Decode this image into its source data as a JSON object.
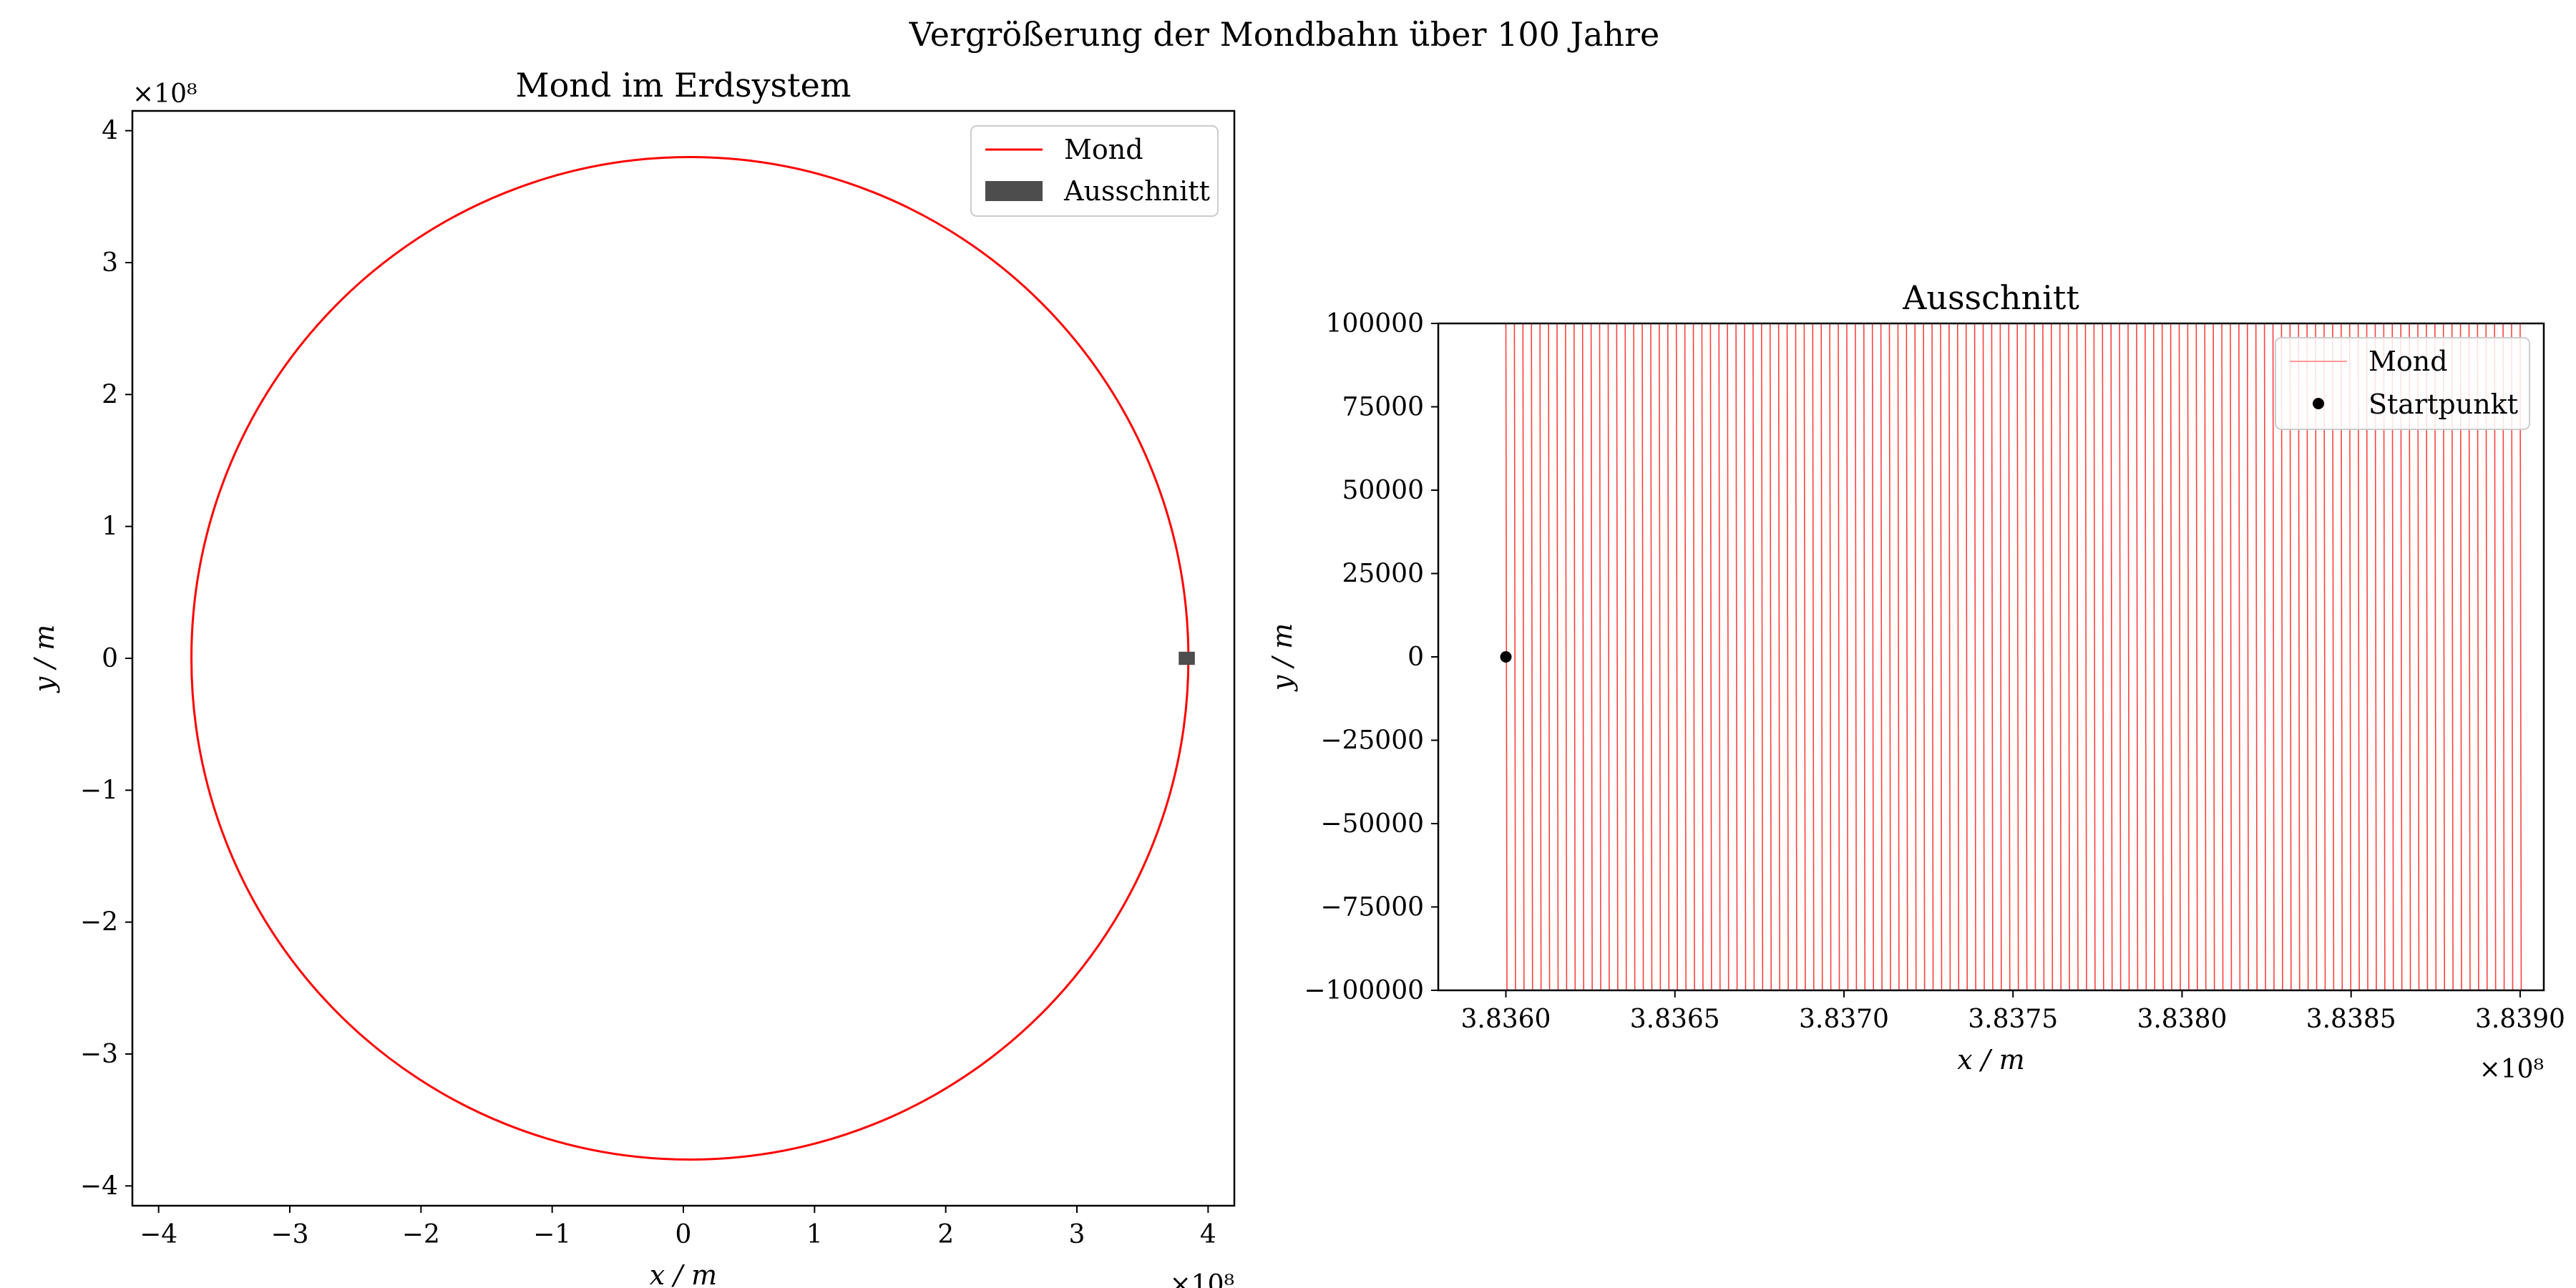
{
  "figure": {
    "suptitle": "Vergrößerung der Mondbahn über 100 Jahre"
  },
  "colors": {
    "orbit": "#ff0000",
    "orbit_faint": "#ff9a9a",
    "region": "#4d4d4d",
    "start": "#000000",
    "axes": "#000000"
  },
  "chart_data": [
    {
      "type": "line",
      "title": "Mond im Erdsystem",
      "xlabel": "x / m",
      "ylabel": "y / m",
      "xlim": [
        -420000000.0,
        420000000.0
      ],
      "ylim": [
        -415000000.0,
        415000000.0
      ],
      "x_ticks": [
        -400000000.0,
        -300000000.0,
        -200000000.0,
        -100000000.0,
        0,
        100000000.0,
        200000000.0,
        300000000.0,
        400000000.0
      ],
      "x_tick_labels": [
        "−4",
        "−3",
        "−2",
        "−1",
        "0",
        "1",
        "2",
        "3",
        "4"
      ],
      "y_ticks": [
        -400000000.0,
        -300000000.0,
        -200000000.0,
        -100000000.0,
        0,
        100000000.0,
        200000000.0,
        300000000.0,
        400000000.0
      ],
      "y_tick_labels": [
        "−4",
        "−3",
        "−2",
        "−1",
        "0",
        "1",
        "2",
        "3",
        "4"
      ],
      "x_offset_label": "×10⁸",
      "y_offset_label": "×10⁸",
      "grid": false,
      "legend_position": "top-right",
      "series": [
        {
          "name": "Mond",
          "kind": "orbit",
          "center": [
            5000000.0,
            0
          ],
          "radius": 380000000.0
        }
      ],
      "region": {
        "name": "Ausschnitt",
        "x": [
          383600000.0,
          383900000.0
        ],
        "y": [
          -100000.0,
          100000.0
        ],
        "display_height": 10000000.0
      }
    },
    {
      "type": "line",
      "title": "Ausschnitt",
      "xlabel": "x / m",
      "ylabel": "y / m",
      "xlim": [
        383580000.0,
        383907000.0
      ],
      "ylim": [
        -100000,
        100000
      ],
      "x_ticks": [
        383600000.0,
        383650000.0,
        383700000.0,
        383750000.0,
        383800000.0,
        383850000.0,
        383900000.0
      ],
      "x_tick_labels": [
        "3.8360",
        "3.8365",
        "3.8370",
        "3.8375",
        "3.8380",
        "3.8385",
        "3.8390"
      ],
      "y_ticks": [
        100000,
        75000,
        50000,
        25000,
        0,
        -25000,
        -50000,
        -75000,
        -100000
      ],
      "y_tick_labels": [
        "100000",
        "75000",
        "50000",
        "25000",
        "0",
        "−25000",
        "−50000",
        "−75000",
        "−100000"
      ],
      "x_offset_label": "×10⁸",
      "grid": false,
      "legend_position": "top-right",
      "series": [
        {
          "name": "Mond",
          "kind": "crossings",
          "x_start": 383600000.0,
          "x_end": 383900000.0,
          "count": 120
        }
      ],
      "points": [
        {
          "name": "Startpunkt",
          "x": 383600000.0,
          "y": 0
        }
      ]
    }
  ]
}
